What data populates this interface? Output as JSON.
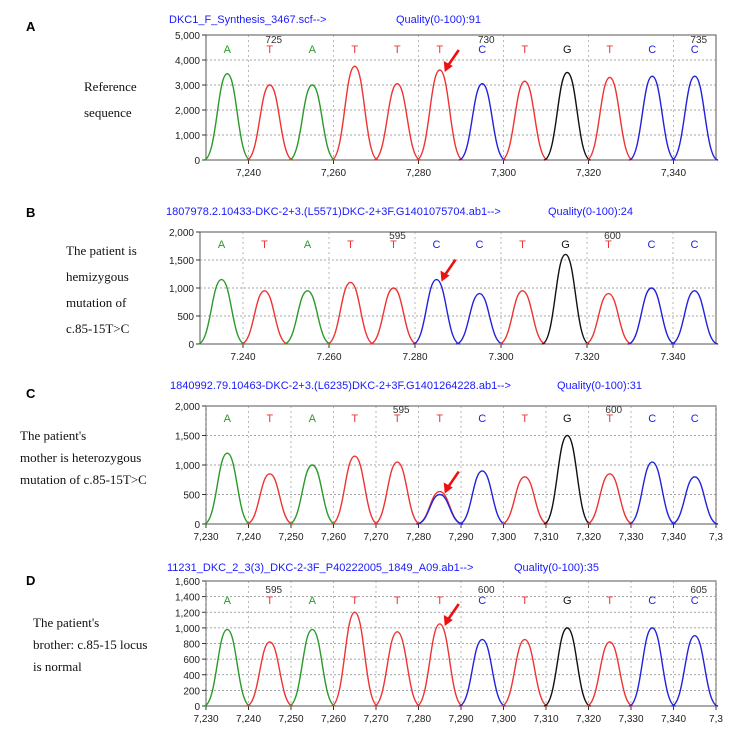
{
  "colors": {
    "A": "#2a9a2a",
    "T": "#ee3333",
    "C": "#2222dd",
    "G": "#111111",
    "arrow": "#ee1111",
    "header": "#1a1aff"
  },
  "panels": [
    {
      "label": "A",
      "description": [
        "Reference",
        "sequence"
      ],
      "filename": "DKC1_F_Synthesis_3467.scf-->",
      "quality": "Quality(0-100):91",
      "ylim": [
        0,
        5000
      ],
      "yticks": [
        "5,000",
        "4,000",
        "3,000",
        "2,000",
        "1,000",
        "0"
      ],
      "xticks": [
        "7,240",
        "7,260",
        "7,280",
        "7,300",
        "7,320",
        "7,340"
      ],
      "positions": [
        {
          "label": "725"
        },
        {
          "label": "730"
        },
        {
          "label": "735"
        }
      ],
      "bases": [
        "A",
        "T",
        "A",
        "T",
        "T",
        "T",
        "C",
        "T",
        "G",
        "T",
        "C",
        "C"
      ],
      "chart_data": {
        "type": "line",
        "xlabel": "",
        "ylabel": "",
        "ylim": [
          0,
          5000
        ],
        "x_range": [
          7230,
          7350
        ],
        "peaks": [
          {
            "base": "A",
            "x": 7235,
            "y": 3450
          },
          {
            "base": "T",
            "x": 7245,
            "y": 3000
          },
          {
            "base": "A",
            "x": 7255,
            "y": 3000
          },
          {
            "base": "T",
            "x": 7265,
            "y": 3750
          },
          {
            "base": "T",
            "x": 7275,
            "y": 3050
          },
          {
            "base": "T",
            "x": 7285,
            "y": 3600
          },
          {
            "base": "C",
            "x": 7295,
            "y": 3050
          },
          {
            "base": "T",
            "x": 7305,
            "y": 3150
          },
          {
            "base": "G",
            "x": 7315,
            "y": 3500
          },
          {
            "base": "T",
            "x": 7325,
            "y": 3300
          },
          {
            "base": "C",
            "x": 7335,
            "y": 3350
          },
          {
            "base": "C",
            "x": 7345,
            "y": 3350
          }
        ],
        "secondary_peaks": [],
        "arrow_at_x": 7285
      }
    },
    {
      "label": "B",
      "description": [
        "The patient is",
        "hemizygous",
        "mutation of",
        "c.85-15T>C"
      ],
      "filename": "1807978.2.10433-DKC-2+3.(L5571)DKC-2+3F.G1401075704.ab1-->",
      "quality": "Quality(0-100):24",
      "ylim": [
        0,
        2000
      ],
      "yticks": [
        "2,000",
        "1,500",
        "1,000",
        "500",
        "0"
      ],
      "xticks": [
        "7.240",
        "7.260",
        "7.280",
        "7.300",
        "7.320",
        "7.340"
      ],
      "positions": [
        {
          "label": "595"
        },
        {
          "label": "600"
        }
      ],
      "bases": [
        "A",
        "T",
        "A",
        "T",
        "T",
        "C",
        "C",
        "T",
        "G",
        "T",
        "C",
        "C"
      ],
      "chart_data": {
        "type": "line",
        "xlabel": "",
        "ylabel": "",
        "ylim": [
          0,
          2000
        ],
        "x_range": [
          7230,
          7350
        ],
        "peaks": [
          {
            "base": "A",
            "x": 7235,
            "y": 1150
          },
          {
            "base": "T",
            "x": 7245,
            "y": 950
          },
          {
            "base": "A",
            "x": 7255,
            "y": 950
          },
          {
            "base": "T",
            "x": 7265,
            "y": 1100
          },
          {
            "base": "T",
            "x": 7275,
            "y": 1000
          },
          {
            "base": "C",
            "x": 7285,
            "y": 1150
          },
          {
            "base": "C",
            "x": 7295,
            "y": 900
          },
          {
            "base": "T",
            "x": 7305,
            "y": 950
          },
          {
            "base": "G",
            "x": 7315,
            "y": 1600
          },
          {
            "base": "T",
            "x": 7325,
            "y": 900
          },
          {
            "base": "C",
            "x": 7335,
            "y": 1000
          },
          {
            "base": "C",
            "x": 7345,
            "y": 950
          }
        ],
        "secondary_peaks": [],
        "arrow_at_x": 7285
      }
    },
    {
      "label": "C",
      "description": [
        "The patient's",
        "mother is heterozygous",
        "mutation of c.85-15T>C"
      ],
      "filename": "1840992.79.10463-DKC-2+3.(L6235)DKC-2+3F.G1401264228.ab1-->",
      "quality": "Quality(0-100):31",
      "ylim": [
        0,
        2000
      ],
      "yticks": [
        "2,000",
        "1,500",
        "1,000",
        "500",
        "0"
      ],
      "xticks": [
        "7,230",
        "7,240",
        "7,250",
        "7,260",
        "7,270",
        "7,280",
        "7,290",
        "7,300",
        "7,310",
        "7,320",
        "7,330",
        "7,340",
        "7,3"
      ],
      "positions": [
        {
          "label": "595"
        },
        {
          "label": "600"
        }
      ],
      "bases": [
        "A",
        "T",
        "A",
        "T",
        "T",
        "T",
        "C",
        "T",
        "G",
        "T",
        "C",
        "C"
      ],
      "chart_data": {
        "type": "line",
        "xlabel": "",
        "ylabel": "",
        "ylim": [
          0,
          2000
        ],
        "x_range": [
          7230,
          7350
        ],
        "peaks": [
          {
            "base": "A",
            "x": 7235,
            "y": 1200
          },
          {
            "base": "T",
            "x": 7245,
            "y": 850
          },
          {
            "base": "A",
            "x": 7255,
            "y": 1000
          },
          {
            "base": "T",
            "x": 7265,
            "y": 1150
          },
          {
            "base": "T",
            "x": 7275,
            "y": 1050
          },
          {
            "base": "T",
            "x": 7285,
            "y": 550
          },
          {
            "base": "C",
            "x": 7295,
            "y": 900
          },
          {
            "base": "T",
            "x": 7305,
            "y": 800
          },
          {
            "base": "G",
            "x": 7315,
            "y": 1500
          },
          {
            "base": "T",
            "x": 7325,
            "y": 850
          },
          {
            "base": "C",
            "x": 7335,
            "y": 1050
          },
          {
            "base": "C",
            "x": 7345,
            "y": 800
          }
        ],
        "secondary_peaks": [
          {
            "base": "C",
            "x": 7285,
            "y": 500
          }
        ],
        "arrow_at_x": 7285
      }
    },
    {
      "label": "D",
      "description": [
        "The patient's",
        "brother: c.85-15 locus",
        "is normal"
      ],
      "filename": "11231_DKC_2_3(3)_DKC-2-3F_P40222005_1849_A09.ab1-->",
      "quality": "Quality(0-100):35",
      "ylim": [
        0,
        1600
      ],
      "yticks": [
        "1,600",
        "1,400",
        "1,200",
        "1,000",
        "800",
        "600",
        "400",
        "200",
        "0"
      ],
      "xticks": [
        "7,230",
        "7,240",
        "7,250",
        "7,260",
        "7,270",
        "7,280",
        "7,290",
        "7,300",
        "7,310",
        "7,320",
        "7,330",
        "7,340",
        "7,3"
      ],
      "positions": [
        {
          "label": "595"
        },
        {
          "label": "600"
        },
        {
          "label": "605"
        }
      ],
      "bases": [
        "A",
        "T",
        "A",
        "T",
        "T",
        "T",
        "C",
        "T",
        "G",
        "T",
        "C",
        "C"
      ],
      "chart_data": {
        "type": "line",
        "xlabel": "",
        "ylabel": "",
        "ylim": [
          0,
          1600
        ],
        "x_range": [
          7230,
          7350
        ],
        "peaks": [
          {
            "base": "A",
            "x": 7235,
            "y": 980
          },
          {
            "base": "T",
            "x": 7245,
            "y": 820
          },
          {
            "base": "A",
            "x": 7255,
            "y": 980
          },
          {
            "base": "T",
            "x": 7265,
            "y": 1200
          },
          {
            "base": "T",
            "x": 7275,
            "y": 950
          },
          {
            "base": "T",
            "x": 7285,
            "y": 1050
          },
          {
            "base": "C",
            "x": 7295,
            "y": 850
          },
          {
            "base": "T",
            "x": 7305,
            "y": 850
          },
          {
            "base": "G",
            "x": 7315,
            "y": 1000
          },
          {
            "base": "T",
            "x": 7325,
            "y": 820
          },
          {
            "base": "C",
            "x": 7335,
            "y": 1000
          },
          {
            "base": "C",
            "x": 7345,
            "y": 900
          }
        ],
        "secondary_peaks": [],
        "arrow_at_x": 7285
      }
    }
  ]
}
